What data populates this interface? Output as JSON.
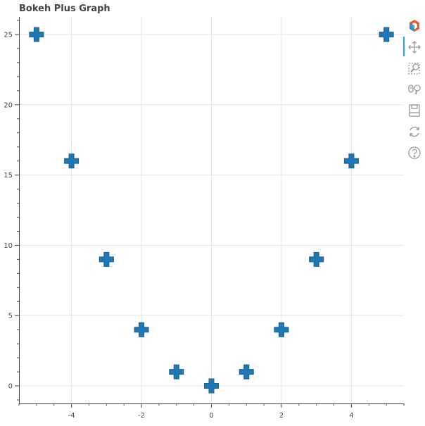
{
  "title": "Bokeh Plus Graph",
  "toolbar": {
    "tools": [
      {
        "name": "bokeh-logo-icon"
      },
      {
        "name": "pan-tool-icon",
        "active": true
      },
      {
        "name": "box-zoom-tool-icon"
      },
      {
        "name": "wheel-zoom-tool-icon"
      },
      {
        "name": "save-tool-icon"
      },
      {
        "name": "reset-tool-icon"
      },
      {
        "name": "help-tool-icon"
      }
    ],
    "active_color": "#26aae1"
  },
  "chart_data": {
    "type": "scatter",
    "marker": "plus",
    "color": "#1f77b4",
    "title": "Bokeh Plus Graph",
    "xlabel": "",
    "ylabel": "",
    "x": [
      -5,
      -4,
      -3,
      -2,
      -1,
      0,
      1,
      2,
      3,
      4,
      5
    ],
    "y": [
      25,
      16,
      9,
      4,
      1,
      0,
      1,
      4,
      9,
      16,
      25
    ],
    "xlim": [
      -5.5,
      5.5
    ],
    "ylim": [
      -1.25,
      26.25
    ],
    "xticks": [
      -4,
      -2,
      0,
      2,
      4
    ],
    "xtick_labels": [
      "-4",
      "-2",
      "0",
      "2",
      "4"
    ],
    "yticks": [
      0,
      5,
      10,
      15,
      20,
      25
    ],
    "ytick_labels": [
      "0",
      "5",
      "10",
      "15",
      "20",
      "25"
    ],
    "grid": true
  }
}
